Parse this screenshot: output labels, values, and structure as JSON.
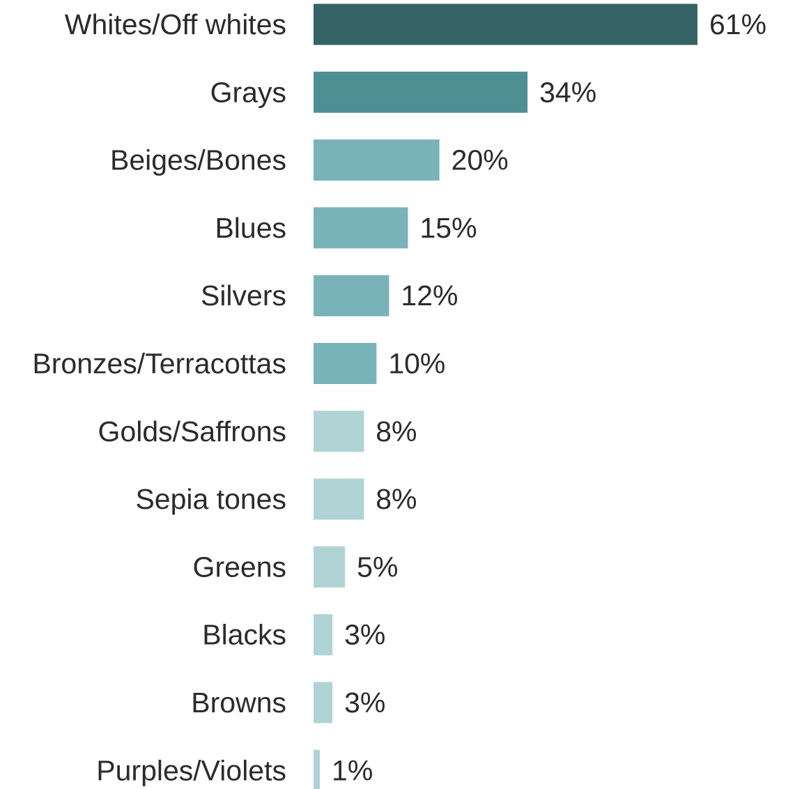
{
  "chart_data": {
    "type": "bar",
    "orientation": "horizontal",
    "categories": [
      "Whites/Off whites",
      "Grays",
      "Beiges/Bones",
      "Blues",
      "Silvers",
      "Bronzes/Terracottas",
      "Golds/Saffrons",
      "Sepia tones",
      "Greens",
      "Blacks",
      "Browns",
      "Purples/Violets"
    ],
    "values": [
      61,
      34,
      20,
      15,
      12,
      10,
      8,
      8,
      5,
      3,
      3,
      1
    ],
    "value_labels": [
      "61%",
      "34%",
      "20%",
      "15%",
      "12%",
      "10%",
      "8%",
      "8%",
      "5%",
      "3%",
      "3%",
      "1%"
    ],
    "bar_colors": [
      "#356366",
      "#4e8f94",
      "#79b3b9",
      "#79b3b9",
      "#79b3b9",
      "#79b3b9",
      "#b0d3d6",
      "#b0d3d6",
      "#b0d3d6",
      "#b0d3d6",
      "#b0d3d6",
      "#b0d3d6"
    ],
    "xlim": [
      0,
      61
    ],
    "unit": "%",
    "title": "",
    "xlabel": "",
    "ylabel": "",
    "grid": false,
    "legend": "none"
  }
}
